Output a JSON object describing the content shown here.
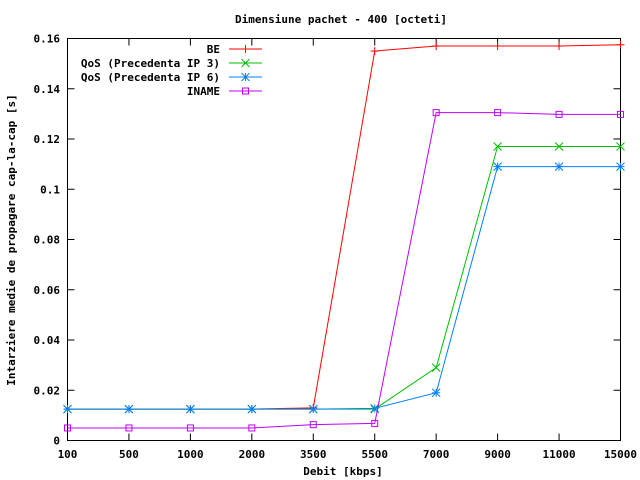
{
  "chart_data": {
    "type": "line",
    "title": "Dimensiune pachet - 400 [octeti]",
    "xlabel": "Debit [kbps]",
    "ylabel": "Intarziere medie de propagare cap-la-cap [s]",
    "categories": [
      "100",
      "500",
      "1000",
      "2000",
      "3500",
      "5500",
      "7000",
      "9000",
      "11000",
      "15000"
    ],
    "ylim": [
      0,
      0.16
    ],
    "yticks": [
      0,
      0.02,
      0.04,
      0.06,
      0.08,
      0.1,
      0.12,
      0.14,
      0.16
    ],
    "ytick_labels": [
      "0",
      "0.02",
      "0.04",
      "0.06",
      "0.08",
      "0.1",
      "0.12",
      "0.14",
      "0.16"
    ],
    "grid": false,
    "legend_position": "top-right",
    "series": [
      {
        "name": "BE",
        "color": "#ff0000",
        "marker": "plus",
        "values": [
          0.0125,
          0.0125,
          0.0125,
          0.0125,
          0.013,
          0.155,
          0.157,
          0.157,
          0.157,
          0.1575
        ]
      },
      {
        "name": "QoS (Precedenta IP 3)",
        "color": "#00c000",
        "marker": "cross",
        "values": [
          0.0125,
          0.0125,
          0.0125,
          0.0125,
          0.0125,
          0.0125,
          0.029,
          0.117,
          0.117,
          0.117
        ]
      },
      {
        "name": "QoS (Precedenta IP 6)",
        "color": "#0080ff",
        "marker": "star",
        "values": [
          0.0125,
          0.0125,
          0.0125,
          0.0125,
          0.0125,
          0.0128,
          0.019,
          0.109,
          0.109,
          0.109
        ]
      },
      {
        "name": "INAME",
        "color": "#c000ff",
        "marker": "square",
        "values": [
          0.005,
          0.005,
          0.005,
          0.005,
          0.0063,
          0.0068,
          0.1305,
          0.1305,
          0.1298,
          0.1298
        ]
      }
    ]
  }
}
